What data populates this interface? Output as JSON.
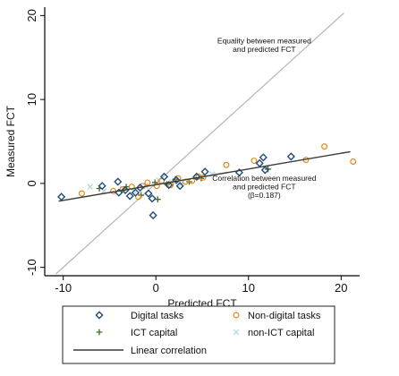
{
  "chart_data": {
    "type": "scatter",
    "xlabel": "Predicted FCT",
    "ylabel": "Measured FCT",
    "xlim": [
      -12,
      22
    ],
    "ylim": [
      -11,
      21
    ],
    "xticks": [
      -10,
      0,
      10,
      20
    ],
    "yticks": [
      -10,
      0,
      10,
      20
    ],
    "xtick_labels": [
      "-10",
      "0",
      "10",
      "20"
    ],
    "ytick_labels": [
      "-10",
      "0",
      "10",
      "20"
    ],
    "grid": false,
    "legend_position": "bottom",
    "colors": {
      "digital": "#1f4e79",
      "non_digital": "#e08a1e",
      "ict": "#3d6b1f",
      "non_ict": "#b9d2e3",
      "linear": "#3a3a3a",
      "equality": "#b5b5b5"
    },
    "series": [
      {
        "name": "Digital tasks",
        "marker": "diamond",
        "points": [
          [
            -10.2,
            -1.6
          ],
          [
            -5.8,
            -0.3
          ],
          [
            -4.1,
            0.2
          ],
          [
            -4,
            -1.1
          ],
          [
            -3.3,
            -0.8
          ],
          [
            -2.8,
            -1.5
          ],
          [
            -2.2,
            -1.1
          ],
          [
            -1.7,
            -0.5
          ],
          [
            -0.8,
            -1.2
          ],
          [
            -0.4,
            -1.8
          ],
          [
            -0.3,
            -3.8
          ],
          [
            0.9,
            0.8
          ],
          [
            1.4,
            -0.2
          ],
          [
            2.2,
            0.4
          ],
          [
            2.6,
            -0.3
          ],
          [
            4.4,
            0.8
          ],
          [
            5.3,
            1.4
          ],
          [
            9,
            1.3
          ],
          [
            11.2,
            2.4
          ],
          [
            11.6,
            3.1
          ],
          [
            11.8,
            1.6
          ],
          [
            14.6,
            3.2
          ]
        ]
      },
      {
        "name": "Non-digital tasks",
        "marker": "circle",
        "points": [
          [
            -8,
            -1.2
          ],
          [
            -4.6,
            -0.9
          ],
          [
            -3.6,
            -0.7
          ],
          [
            -2.6,
            -0.4
          ],
          [
            -1.9,
            -1.6
          ],
          [
            -1.4,
            -0.3
          ],
          [
            -0.9,
            0.1
          ],
          [
            0.1,
            -0.3
          ],
          [
            0.6,
            0.3
          ],
          [
            1.6,
            -0.2
          ],
          [
            2.4,
            0.6
          ],
          [
            3.2,
            0.2
          ],
          [
            3.9,
            0.3
          ],
          [
            4.6,
            0.8
          ],
          [
            5.1,
            0.7
          ],
          [
            7.6,
            2.2
          ],
          [
            10.6,
            2.7
          ],
          [
            16.2,
            2.8
          ],
          [
            18.2,
            4.4
          ],
          [
            21.3,
            2.6
          ]
        ]
      },
      {
        "name": "ICT capital",
        "marker": "plus",
        "points": [
          [
            -6.1,
            -0.6
          ],
          [
            -3.2,
            -0.4
          ],
          [
            -1.6,
            -1.4
          ],
          [
            -0.1,
            0.1
          ],
          [
            0.2,
            -1.9
          ],
          [
            1.2,
            -0.1
          ],
          [
            2.1,
            0.5
          ],
          [
            3.6,
            0.2
          ],
          [
            4.9,
            0.6
          ],
          [
            12.1,
            1.7
          ]
        ]
      },
      {
        "name": "non-ICT capital",
        "marker": "x",
        "points": [
          [
            -7.1,
            -0.4
          ],
          [
            -5.6,
            -0.9
          ],
          [
            -3.6,
            -0.6
          ],
          [
            -2.4,
            -0.9
          ],
          [
            -1.1,
            -0.3
          ],
          [
            0.3,
            0.4
          ],
          [
            1.7,
            0.2
          ],
          [
            2.7,
            -0.1
          ],
          [
            6.1,
            1.1
          ]
        ]
      }
    ],
    "lines": [
      {
        "name": "Linear correlation",
        "slope": 0.187,
        "intercept": -0.15
      },
      {
        "name": "Equality",
        "slope": 1,
        "intercept": 0
      }
    ],
    "annotations": [
      {
        "lines": [
          "Equality between measured",
          "and predicted FCT"
        ],
        "x": 11.7,
        "y": 16.7
      },
      {
        "lines": [
          "Correlation between measured",
          "and predicted FCT",
          "(β=0.187)"
        ],
        "x": 11.7,
        "y": 0.3
      }
    ],
    "legend": [
      {
        "label": "Digital tasks",
        "marker": "diamond"
      },
      {
        "label": "Non-digital tasks",
        "marker": "circle"
      },
      {
        "label": "ICT capital",
        "marker": "plus"
      },
      {
        "label": "non-ICT capital",
        "marker": "x"
      },
      {
        "label": "Linear correlation",
        "marker": "line"
      }
    ]
  }
}
